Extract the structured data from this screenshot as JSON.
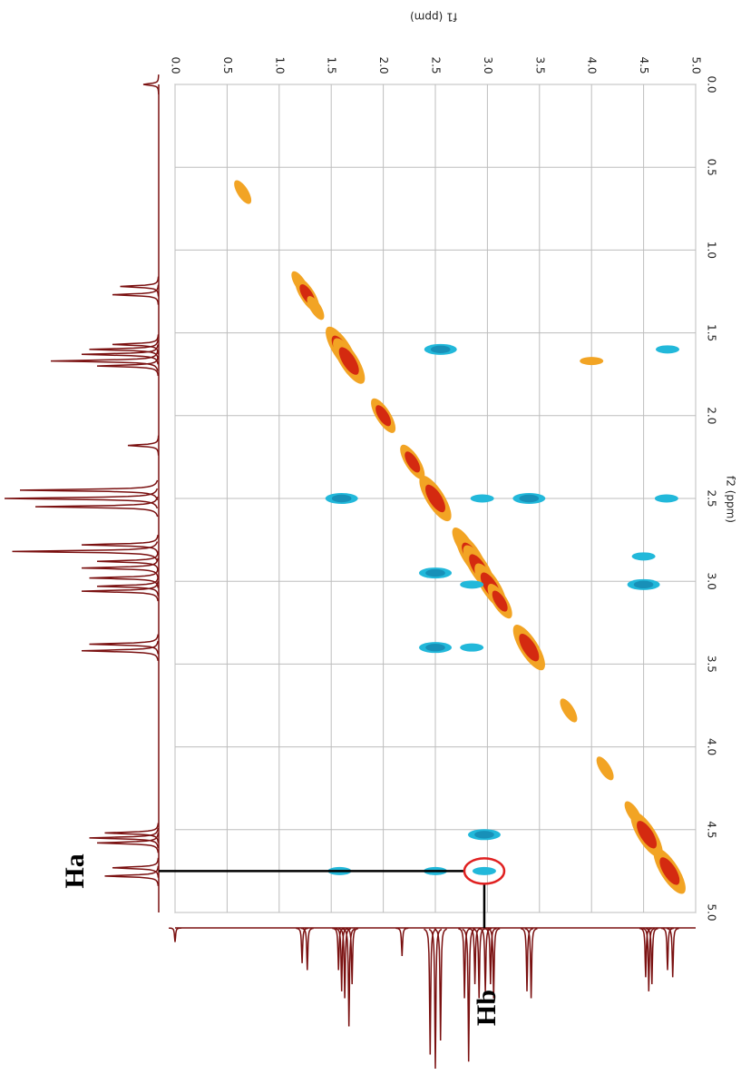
{
  "chart_data": {
    "type": "scatter",
    "x_label": "f1 (ppm)",
    "y_label": "f2 (ppm)",
    "xlim": [
      0,
      5
    ],
    "ylim": [
      0,
      5
    ],
    "xticks": [
      {
        "value": 0,
        "label": "0.0"
      },
      0.5,
      {
        "value": 1,
        "label": "1.0"
      },
      1.5,
      {
        "value": 2,
        "label": "2.0"
      },
      2.5,
      {
        "value": 3,
        "label": "3.0"
      },
      3.5,
      {
        "value": 4,
        "label": "4.0"
      },
      4.5,
      {
        "value": 5,
        "label": "5.0"
      }
    ],
    "yticks": [
      {
        "value": 0,
        "label": "0.0"
      },
      0.5,
      {
        "value": 1,
        "label": "1.0"
      },
      1.5,
      {
        "value": 2,
        "label": "2.0"
      },
      2.5,
      {
        "value": 3,
        "label": "3.0"
      },
      3.5,
      {
        "value": 4,
        "label": "4.0"
      },
      4.5,
      {
        "value": 5,
        "label": "5.0"
      }
    ],
    "grid": true,
    "series": [
      {
        "color": "#f2a424",
        "core_color": "#d42a10",
        "x": [
          0.65,
          1.2,
          1.27,
          1.35,
          1.6,
          1.67,
          2.0,
          2.28,
          2.5,
          2.78,
          2.85,
          2.92,
          3.03,
          3.12,
          3.4,
          3.78,
          4.13,
          4.4,
          4.53,
          4.75,
          4.0
        ],
        "y": [
          0.65,
          1.2,
          1.27,
          1.35,
          1.6,
          1.67,
          2.0,
          2.28,
          2.5,
          2.78,
          2.85,
          2.92,
          3.03,
          3.12,
          3.4,
          3.78,
          4.13,
          4.4,
          4.53,
          4.75,
          1.67
        ],
        "size": [
          1,
          1,
          2,
          1,
          3,
          3,
          2,
          2,
          3,
          2,
          3,
          3,
          3,
          2,
          3,
          1,
          1,
          1,
          3,
          3,
          1
        ]
      },
      {
        "color": "#22b8da",
        "core_color": "#1890b8",
        "x": [
          2.55,
          4.73,
          1.6,
          2.95,
          3.4,
          4.72,
          2.5,
          4.5,
          4.5,
          2.85,
          2.5,
          2.85,
          2.97,
          1.58,
          2.5,
          2.97
        ],
        "y": [
          1.6,
          1.6,
          2.5,
          2.5,
          2.5,
          2.5,
          2.95,
          2.85,
          3.02,
          3.02,
          3.4,
          3.4,
          4.53,
          4.75,
          4.75,
          4.75
        ],
        "size": [
          2,
          1,
          2,
          1,
          2,
          1,
          2,
          1,
          2,
          1,
          2,
          1,
          2,
          1,
          1,
          1
        ]
      }
    ],
    "projection": {
      "color": "#7a1010",
      "ppm": [
        0.0,
        1.22,
        1.27,
        1.57,
        1.6,
        1.63,
        1.67,
        1.7,
        2.18,
        2.45,
        2.5,
        2.55,
        2.78,
        2.82,
        2.88,
        2.92,
        2.98,
        3.03,
        3.06,
        3.38,
        3.42,
        4.52,
        4.55,
        4.58,
        4.73,
        4.78
      ],
      "intensity": [
        0.1,
        0.25,
        0.3,
        0.3,
        0.45,
        0.5,
        0.7,
        0.4,
        0.2,
        0.9,
        1.0,
        0.8,
        0.5,
        0.95,
        0.4,
        0.5,
        0.45,
        0.4,
        0.5,
        0.45,
        0.5,
        0.35,
        0.45,
        0.4,
        0.3,
        0.35
      ]
    },
    "annotations": [
      {
        "text": "Ha"
      },
      {
        "text": "Hb"
      }
    ]
  }
}
